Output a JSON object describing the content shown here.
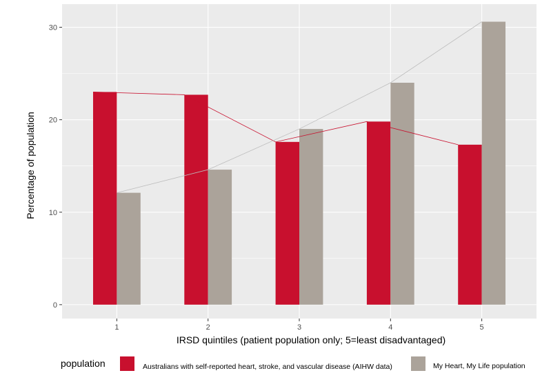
{
  "chart_data": {
    "type": "bar",
    "title": "",
    "xlabel": "IRSD quintiles (patient population only; 5=least disadvantaged)",
    "ylabel": "Percentage of population",
    "categories": [
      "1",
      "2",
      "3",
      "4",
      "5"
    ],
    "ylim": [
      -1.5,
      32.5
    ],
    "yticks": [
      0,
      10,
      20,
      30
    ],
    "ytick_labels": [
      "0",
      "10",
      "20",
      "30"
    ],
    "grid": true,
    "legend": {
      "title": "population",
      "position": "bottom"
    },
    "series": [
      {
        "name": "Australians with self-reported heart, stroke, and vascular disease (AIHW data)",
        "color": "#C8102E",
        "values": [
          23.0,
          22.7,
          17.6,
          19.8,
          17.3
        ]
      },
      {
        "name": "My Heart, My Life population",
        "color": "#ABA39A",
        "values": [
          12.1,
          14.6,
          19.0,
          24.0,
          30.6
        ]
      }
    ],
    "line_colors": [
      "#C8102E",
      "#BDBDBD"
    ],
    "panel_background": "#EBEBEB"
  }
}
